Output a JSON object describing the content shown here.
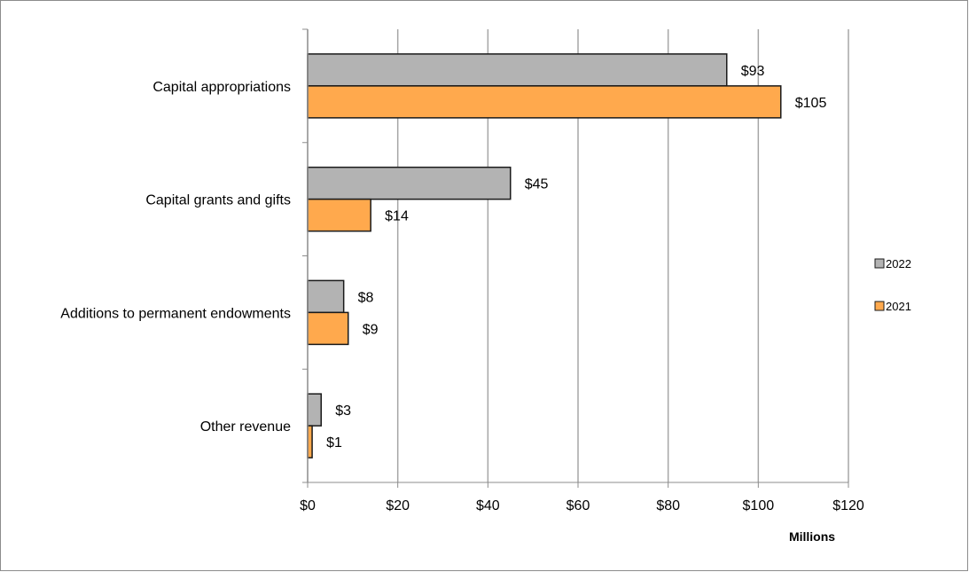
{
  "chart_data": {
    "type": "bar",
    "orientation": "horizontal",
    "categories": [
      "Capital appropriations",
      "Capital grants and gifts",
      "Additions to permanent endowments",
      "Other revenue"
    ],
    "series": [
      {
        "name": "2022",
        "values": [
          93,
          45,
          8,
          3
        ],
        "labels": [
          "$93",
          "$45",
          "$8",
          "$3"
        ],
        "color": "#b3b3b3"
      },
      {
        "name": "2021",
        "values": [
          105,
          14,
          9,
          1
        ],
        "labels": [
          "$105",
          "$14",
          "$9",
          "$1"
        ],
        "color": "#ffa94d"
      }
    ],
    "xlim": [
      0,
      120
    ],
    "xticks": [
      0,
      20,
      40,
      60,
      80,
      100,
      120
    ],
    "xtick_labels": [
      "$0",
      "$20",
      "$40",
      "$60",
      "$80",
      "$100",
      "$120"
    ],
    "xlabel": "Millions",
    "grid": "vertical",
    "legend_position": "right"
  }
}
